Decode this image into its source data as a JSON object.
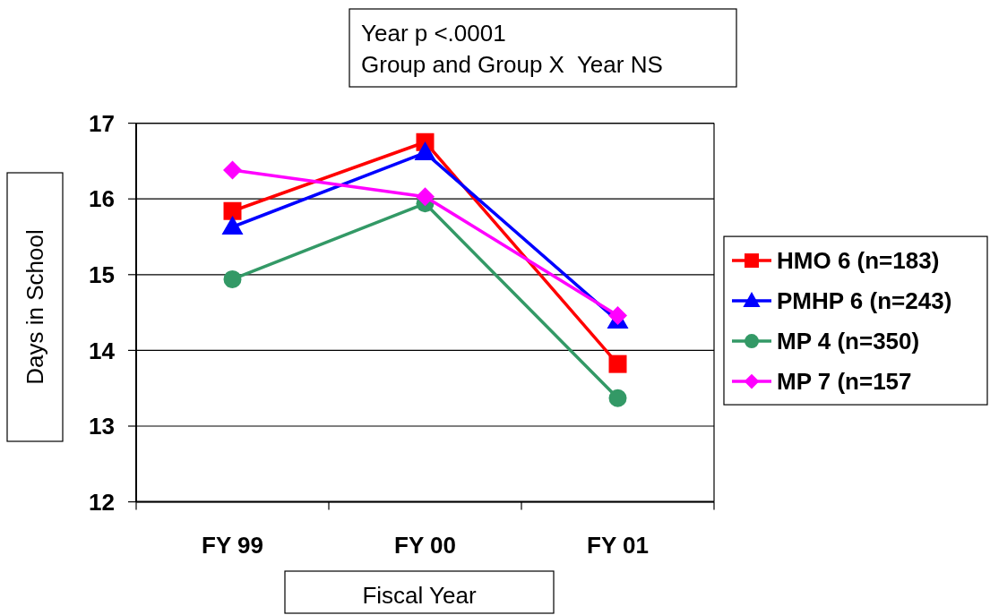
{
  "chart_data": {
    "type": "line",
    "xlabel": "Fiscal Year",
    "ylabel": "Days in School",
    "annotations": [
      "Year p <.0001",
      "Group and Group X  Year NS"
    ],
    "categories": [
      "FY 99",
      "FY 00",
      "FY 01"
    ],
    "series": [
      {
        "name": "HMO 6 (n=183)",
        "color": "#ff0000",
        "marker": "square",
        "values": [
          15.84,
          16.75,
          13.82
        ]
      },
      {
        "name": "PMHP 6 (n=243)",
        "color": "#0000ff",
        "marker": "triangle",
        "values": [
          15.63,
          16.61,
          14.39
        ]
      },
      {
        "name": "MP 4 (n=350)",
        "color": "#339966",
        "marker": "circle",
        "values": [
          14.94,
          15.94,
          13.37
        ]
      },
      {
        "name": "MP 7 (n=157",
        "color": "#ff00ff",
        "marker": "diamond",
        "values": [
          16.38,
          16.03,
          14.46
        ]
      }
    ],
    "ylim": [
      12,
      17
    ],
    "yticks": [
      12,
      13,
      14,
      15,
      16,
      17
    ],
    "grid": "y",
    "legend": "right"
  }
}
